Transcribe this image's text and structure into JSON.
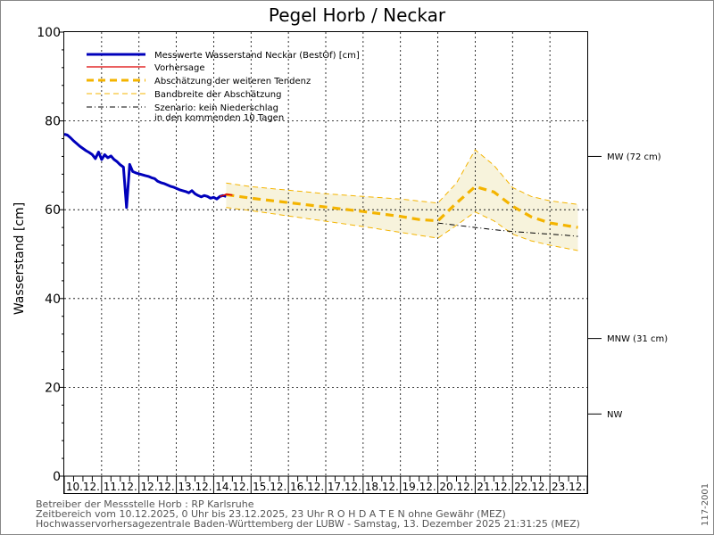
{
  "chart_data": {
    "type": "line",
    "title": "Pegel Horb / Neckar",
    "ylabel": "Wasserstand  [cm]",
    "xlabel": "",
    "ylim": [
      0,
      100
    ],
    "xlim": [
      0,
      336
    ],
    "y_ticks": [
      0,
      20,
      40,
      60,
      80,
      100
    ],
    "y_tick_labels": [
      "0",
      "20",
      "40",
      "60",
      "80",
      "100"
    ],
    "x_categories": [
      "10.12.",
      "11.12.",
      "12.12.",
      "13.12.",
      "14.12.",
      "15.12.",
      "16.12.",
      "17.12.",
      "18.12.",
      "19.12.",
      "20.12.",
      "21.12.",
      "22.12.",
      "23.12."
    ],
    "x_unit": "hours since 10.12.2025 00:00",
    "grid": true,
    "legend": [
      {
        "label": "Messwerte Wasserstand Neckar  (BestOf)   [cm]",
        "color": "#0000bb",
        "style": "solid-thick"
      },
      {
        "label": "Vorhersage",
        "color": "#dd0000",
        "style": "solid"
      },
      {
        "label": "Abschätzung der weiteren Tendenz",
        "color": "#f4b400",
        "style": "dashed-thick"
      },
      {
        "label": "Bandbreite der Abschätzung",
        "color": "#f4b400",
        "style": "dashed"
      },
      {
        "label": "Szenario: kein Niederschlag",
        "label2": "in den kommenden 10 Tagen",
        "color": "#000000",
        "style": "dashdot"
      }
    ],
    "reference_levels": [
      {
        "label": "MW (72 cm)",
        "value": 72
      },
      {
        "label": "MNW (31 cm)",
        "value": 31
      },
      {
        "label": "NW",
        "value": 14
      }
    ],
    "series": [
      {
        "name": "Messwerte Wasserstand Neckar",
        "color": "#0000bb",
        "x": [
          0,
          2,
          4,
          6,
          8,
          10,
          12,
          14,
          16,
          18,
          20,
          22,
          24,
          26,
          28,
          30,
          32,
          34,
          36,
          38,
          40,
          42,
          44,
          46,
          48,
          50,
          52,
          54,
          56,
          58,
          60,
          62,
          64,
          66,
          68,
          70,
          72,
          74,
          76,
          78,
          80,
          82,
          84,
          86,
          88,
          90,
          92,
          94,
          96,
          98,
          100,
          102,
          104
        ],
        "y": [
          77,
          76.8,
          76.2,
          75.5,
          74.9,
          74.3,
          73.8,
          73.3,
          72.9,
          72.4,
          71.5,
          73,
          71.3,
          72.4,
          71.7,
          72.1,
          71.3,
          70.8,
          70.1,
          69.6,
          60.5,
          70.2,
          68.6,
          68.3,
          68.1,
          67.9,
          67.7,
          67.5,
          67.2,
          67.0,
          66.4,
          66.1,
          65.9,
          65.6,
          65.3,
          65.1,
          64.8,
          64.5,
          64.3,
          64.1,
          63.8,
          64.3,
          63.6,
          63.2,
          62.9,
          63.2,
          63.0,
          62.6,
          62.8,
          62.4,
          63.0,
          63.2,
          63.0
        ]
      },
      {
        "name": "Vorhersage",
        "color": "#dd0000",
        "x": [
          100,
          102,
          104,
          106,
          108
        ],
        "y": [
          63.0,
          63.2,
          63.5,
          63.4,
          63.3
        ]
      },
      {
        "name": "Abschätzung der weiteren Tendenz",
        "color": "#f4b400",
        "x": [
          104,
          120,
          144,
          168,
          192,
          216,
          228,
          240,
          252,
          264,
          276,
          288,
          300,
          312,
          330
        ],
        "y": [
          63.4,
          62.6,
          61.6,
          60.6,
          59.6,
          58.5,
          57.8,
          57.5,
          61.5,
          65.2,
          64.0,
          60.8,
          58.4,
          57.0,
          56.0
        ]
      },
      {
        "name": "Bandbreite oben",
        "color": "#f4b400",
        "x": [
          104,
          120,
          144,
          168,
          192,
          216,
          240,
          252,
          264,
          276,
          288,
          300,
          312,
          330
        ],
        "y": [
          66.0,
          65.2,
          64.4,
          63.6,
          63.0,
          62.4,
          61.5,
          66.0,
          73.5,
          70.0,
          65.0,
          63.0,
          62.0,
          61.2
        ]
      },
      {
        "name": "Bandbreite unten",
        "color": "#f4b400",
        "x": [
          104,
          120,
          144,
          168,
          192,
          216,
          240,
          252,
          264,
          276,
          288,
          300,
          312,
          330
        ],
        "y": [
          60.5,
          59.8,
          58.6,
          57.4,
          56.2,
          54.9,
          53.6,
          56.5,
          59.5,
          57.5,
          54.5,
          53.0,
          52.0,
          50.8
        ]
      },
      {
        "name": "Szenario: kein Niederschlag",
        "color": "#000000",
        "x": [
          240,
          252,
          264,
          276,
          288,
          300,
          312,
          324,
          330
        ],
        "y": [
          57.0,
          56.5,
          56.0,
          55.5,
          55.1,
          54.8,
          54.5,
          54.2,
          54.0
        ]
      }
    ]
  },
  "footer": {
    "line1": "Betreiber der Messstelle Horb : RP Karlsruhe",
    "line2": "Zeitbereich vom 10.12.2025, 0 Uhr bis 23.12.2025, 23 Uhr    R O H D A T E N ohne Gewähr (MEZ)",
    "line3": "Hochwasservorhersagezentrale Baden-Württemberg der LUBW - Samstag, 13. Dezember 2025 21:31:25 (MEZ)",
    "code": "117-2001"
  }
}
